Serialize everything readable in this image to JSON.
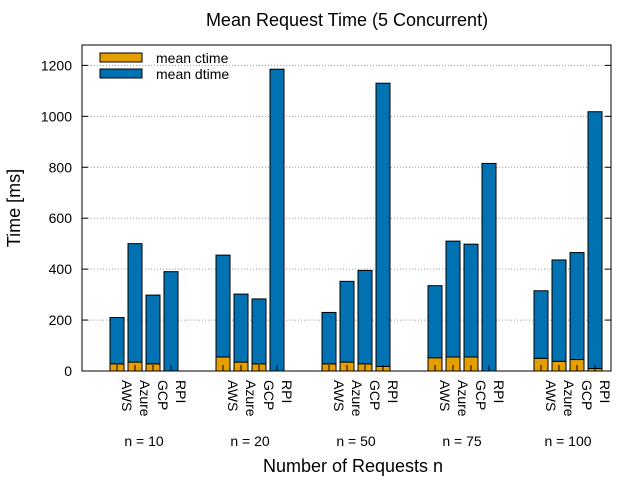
{
  "chart_data": {
    "type": "bar",
    "stacked": true,
    "title": "Mean Request Time (5 Concurrent)",
    "xlabel": "Number of Requests n",
    "ylabel": "Time [ms]",
    "ylim": [
      0,
      1280
    ],
    "yticks": [
      0,
      200,
      400,
      600,
      800,
      1000,
      1200
    ],
    "grid": "horizontal-dotted",
    "legend_position": "top-left",
    "providers": [
      "AWS",
      "Azure",
      "GCP",
      "RPI"
    ],
    "groups": [
      "n = 10",
      "n = 20",
      "n = 50",
      "n = 75",
      "n = 100"
    ],
    "series": [
      {
        "name": "mean ctime",
        "color": "#e69f00",
        "values": [
          [
            28,
            35,
            28,
            0
          ],
          [
            55,
            35,
            28,
            0
          ],
          [
            28,
            35,
            28,
            18
          ],
          [
            52,
            55,
            55,
            0
          ],
          [
            50,
            38,
            45,
            10
          ]
        ]
      },
      {
        "name": "mean dtime",
        "color": "#0072b2",
        "values": [
          [
            182,
            465,
            270,
            390
          ],
          [
            400,
            267,
            255,
            1185
          ],
          [
            202,
            317,
            367,
            1112
          ],
          [
            283,
            455,
            443,
            815
          ],
          [
            265,
            398,
            420,
            1008
          ]
        ]
      }
    ],
    "totals": [
      [
        210,
        500,
        298,
        390
      ],
      [
        455,
        302,
        283,
        1185
      ],
      [
        230,
        352,
        395,
        1130
      ],
      [
        335,
        510,
        498,
        815
      ],
      [
        315,
        436,
        465,
        1018
      ]
    ]
  }
}
